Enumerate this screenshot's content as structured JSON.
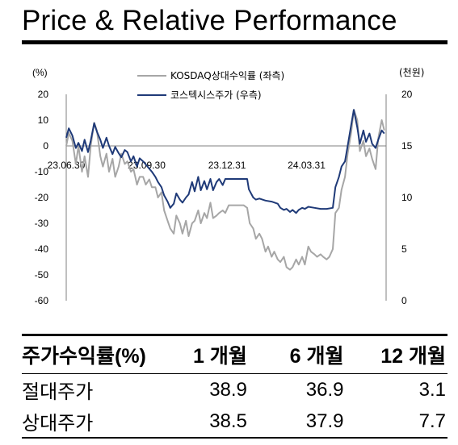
{
  "header": {
    "title": "Price & Relative Performance"
  },
  "chart_data": {
    "type": "line",
    "left_axis_label": "(%)",
    "right_axis_label": "(천원)",
    "left_ylim": [
      -60,
      20
    ],
    "right_ylim": [
      0,
      20
    ],
    "left_ticks": [
      "20",
      "10",
      "0",
      "-10",
      "-20",
      "-30",
      "-40",
      "-50",
      "-60"
    ],
    "right_ticks": [
      "20",
      "15",
      "10",
      "5",
      "0"
    ],
    "x_ticks": [
      "23.06.30",
      "23.09.30",
      "23.12.31",
      "24.03.31"
    ],
    "x_range": [
      "2023-06-30",
      "2024-06-30"
    ],
    "grid": false,
    "legend_position": "top-center",
    "series": [
      {
        "name": "KOSDAQ상대수익률 (좌측)",
        "axis": "left",
        "color": "#a6a6a6",
        "points": [
          [
            "2023-06-30",
            0
          ],
          [
            "2023-07-03",
            5
          ],
          [
            "2023-07-07",
            2
          ],
          [
            "2023-07-11",
            -7
          ],
          [
            "2023-07-14",
            0
          ],
          [
            "2023-07-18",
            -10
          ],
          [
            "2023-07-21",
            -4
          ],
          [
            "2023-07-25",
            -12
          ],
          [
            "2023-07-28",
            0
          ],
          [
            "2023-08-01",
            9
          ],
          [
            "2023-08-04",
            6
          ],
          [
            "2023-08-08",
            -4
          ],
          [
            "2023-08-11",
            -8
          ],
          [
            "2023-08-15",
            -3
          ],
          [
            "2023-08-18",
            -10
          ],
          [
            "2023-08-22",
            -5
          ],
          [
            "2023-08-25",
            -12
          ],
          [
            "2023-08-29",
            -8
          ],
          [
            "2023-09-01",
            -3
          ],
          [
            "2023-09-05",
            -7
          ],
          [
            "2023-09-08",
            -6
          ],
          [
            "2023-09-12",
            -10
          ],
          [
            "2023-09-15",
            -9
          ],
          [
            "2023-09-19",
            -15
          ],
          [
            "2023-09-22",
            -12
          ],
          [
            "2023-09-26",
            -12
          ],
          [
            "2023-09-29",
            -15
          ],
          [
            "2023-10-03",
            -13
          ],
          [
            "2023-10-06",
            -16
          ],
          [
            "2023-10-10",
            -16
          ],
          [
            "2023-10-13",
            -20
          ],
          [
            "2023-10-17",
            -18
          ],
          [
            "2023-10-20",
            -25
          ],
          [
            "2023-10-24",
            -29
          ],
          [
            "2023-10-27",
            -32
          ],
          [
            "2023-10-31",
            -34
          ],
          [
            "2023-11-03",
            -27
          ],
          [
            "2023-11-07",
            -30
          ],
          [
            "2023-11-10",
            -34
          ],
          [
            "2023-11-14",
            -29
          ],
          [
            "2023-11-17",
            -35
          ],
          [
            "2023-11-21",
            -30
          ],
          [
            "2023-11-24",
            -29
          ],
          [
            "2023-11-28",
            -25
          ],
          [
            "2023-12-01",
            -30
          ],
          [
            "2023-12-05",
            -26
          ],
          [
            "2023-12-08",
            -28
          ],
          [
            "2023-12-12",
            -22
          ],
          [
            "2023-12-15",
            -28
          ],
          [
            "2023-12-19",
            -27
          ],
          [
            "2023-12-22",
            -26
          ],
          [
            "2023-12-26",
            -25
          ],
          [
            "2023-12-29",
            -26
          ],
          [
            "2024-01-02",
            -23
          ],
          [
            "2024-01-05",
            -23
          ],
          [
            "2024-01-09",
            -23
          ],
          [
            "2024-01-12",
            -23
          ],
          [
            "2024-01-16",
            -23
          ],
          [
            "2024-01-19",
            -23
          ],
          [
            "2024-01-23",
            -24
          ],
          [
            "2024-01-26",
            -30
          ],
          [
            "2024-01-30",
            -32
          ],
          [
            "2024-02-02",
            -36
          ],
          [
            "2024-02-06",
            -34
          ],
          [
            "2024-02-09",
            -36
          ],
          [
            "2024-02-13",
            -41
          ],
          [
            "2024-02-16",
            -39
          ],
          [
            "2024-02-20",
            -43
          ],
          [
            "2024-02-23",
            -41
          ],
          [
            "2024-02-27",
            -44
          ],
          [
            "2024-03-01",
            -45
          ],
          [
            "2024-03-05",
            -43
          ],
          [
            "2024-03-08",
            -47
          ],
          [
            "2024-03-12",
            -48
          ],
          [
            "2024-03-15",
            -47
          ],
          [
            "2024-03-19",
            -44
          ],
          [
            "2024-03-22",
            -46
          ],
          [
            "2024-03-26",
            -43
          ],
          [
            "2024-03-29",
            -46
          ],
          [
            "2024-04-02",
            -39
          ],
          [
            "2024-04-05",
            -41
          ],
          [
            "2024-04-09",
            -42
          ],
          [
            "2024-04-12",
            -43
          ],
          [
            "2024-04-16",
            -42
          ],
          [
            "2024-04-19",
            -43
          ],
          [
            "2024-04-23",
            -44
          ],
          [
            "2024-04-26",
            -43
          ],
          [
            "2024-04-30",
            -40
          ],
          [
            "2024-05-03",
            -26
          ],
          [
            "2024-05-07",
            -24
          ],
          [
            "2024-05-10",
            -17
          ],
          [
            "2024-05-14",
            -12
          ],
          [
            "2024-05-17",
            -3
          ],
          [
            "2024-05-21",
            5
          ],
          [
            "2024-05-24",
            14
          ],
          [
            "2024-05-28",
            10
          ],
          [
            "2024-05-31",
            -2
          ],
          [
            "2024-06-04",
            2
          ],
          [
            "2024-06-07",
            -4
          ],
          [
            "2024-06-11",
            -1
          ],
          [
            "2024-06-14",
            -5
          ],
          [
            "2024-06-18",
            -9
          ],
          [
            "2024-06-21",
            3
          ],
          [
            "2024-06-25",
            10
          ],
          [
            "2024-06-28",
            6
          ]
        ]
      },
      {
        "name": "코스텍시스주가 (우측)",
        "axis": "right",
        "color": "#1f3a78",
        "points": [
          [
            "2023-06-30",
            15.8
          ],
          [
            "2023-07-03",
            16.7
          ],
          [
            "2023-07-07",
            16.0
          ],
          [
            "2023-07-11",
            14.8
          ],
          [
            "2023-07-14",
            15.3
          ],
          [
            "2023-07-18",
            14.5
          ],
          [
            "2023-07-21",
            15.6
          ],
          [
            "2023-07-25",
            14.4
          ],
          [
            "2023-07-28",
            15.5
          ],
          [
            "2023-08-01",
            17.2
          ],
          [
            "2023-08-04",
            16.4
          ],
          [
            "2023-08-08",
            15.6
          ],
          [
            "2023-08-11",
            14.8
          ],
          [
            "2023-08-15",
            15.8
          ],
          [
            "2023-08-18",
            15.0
          ],
          [
            "2023-08-22",
            14.2
          ],
          [
            "2023-08-25",
            14.9
          ],
          [
            "2023-08-29",
            14.3
          ],
          [
            "2023-09-01",
            13.9
          ],
          [
            "2023-09-05",
            14.6
          ],
          [
            "2023-09-08",
            14.4
          ],
          [
            "2023-09-12",
            13.5
          ],
          [
            "2023-09-15",
            14.0
          ],
          [
            "2023-09-19",
            13.0
          ],
          [
            "2023-09-22",
            13.8
          ],
          [
            "2023-09-26",
            13.5
          ],
          [
            "2023-09-29",
            13.2
          ],
          [
            "2023-10-03",
            12.8
          ],
          [
            "2023-10-06",
            12.5
          ],
          [
            "2023-10-10",
            12.0
          ],
          [
            "2023-10-13",
            11.5
          ],
          [
            "2023-10-17",
            11.0
          ],
          [
            "2023-10-20",
            10.2
          ],
          [
            "2023-10-24",
            9.6
          ],
          [
            "2023-10-27",
            9.0
          ],
          [
            "2023-10-31",
            9.4
          ],
          [
            "2023-11-03",
            10.4
          ],
          [
            "2023-11-07",
            9.8
          ],
          [
            "2023-11-10",
            9.5
          ],
          [
            "2023-11-14",
            10.0
          ],
          [
            "2023-11-17",
            10.3
          ],
          [
            "2023-11-21",
            11.5
          ],
          [
            "2023-11-24",
            10.6
          ],
          [
            "2023-11-28",
            12.0
          ],
          [
            "2023-12-01",
            10.7
          ],
          [
            "2023-12-05",
            11.6
          ],
          [
            "2023-12-08",
            10.8
          ],
          [
            "2023-12-12",
            11.8
          ],
          [
            "2023-12-15",
            10.7
          ],
          [
            "2023-12-19",
            11.5
          ],
          [
            "2023-12-22",
            11.8
          ],
          [
            "2023-12-26",
            11.2
          ],
          [
            "2023-12-29",
            11.8
          ],
          [
            "2024-01-02",
            11.8
          ],
          [
            "2024-01-09",
            11.8
          ],
          [
            "2024-01-16",
            11.8
          ],
          [
            "2024-01-23",
            11.8
          ],
          [
            "2024-01-25",
            10.8
          ],
          [
            "2024-01-30",
            10.0
          ],
          [
            "2024-02-02",
            9.8
          ],
          [
            "2024-02-06",
            9.9
          ],
          [
            "2024-02-13",
            9.7
          ],
          [
            "2024-02-20",
            9.6
          ],
          [
            "2024-02-27",
            9.4
          ],
          [
            "2024-03-01",
            9.0
          ],
          [
            "2024-03-05",
            8.8
          ],
          [
            "2024-03-08",
            8.9
          ],
          [
            "2024-03-12",
            8.6
          ],
          [
            "2024-03-15",
            8.8
          ],
          [
            "2024-03-19",
            8.5
          ],
          [
            "2024-03-22",
            8.8
          ],
          [
            "2024-03-26",
            9.0
          ],
          [
            "2024-03-29",
            8.9
          ],
          [
            "2024-04-02",
            9.1
          ],
          [
            "2024-04-09",
            9.0
          ],
          [
            "2024-04-16",
            8.9
          ],
          [
            "2024-04-23",
            8.9
          ],
          [
            "2024-04-30",
            9.0
          ],
          [
            "2024-05-03",
            11.0
          ],
          [
            "2024-05-07",
            12.0
          ],
          [
            "2024-05-10",
            13.0
          ],
          [
            "2024-05-14",
            13.5
          ],
          [
            "2024-05-17",
            15.0
          ],
          [
            "2024-05-21",
            17.0
          ],
          [
            "2024-05-24",
            18.5
          ],
          [
            "2024-05-28",
            16.8
          ],
          [
            "2024-05-31",
            15.2
          ],
          [
            "2024-06-04",
            16.5
          ],
          [
            "2024-06-07",
            15.4
          ],
          [
            "2024-06-11",
            16.2
          ],
          [
            "2024-06-14",
            15.2
          ],
          [
            "2024-06-18",
            14.8
          ],
          [
            "2024-06-21",
            15.6
          ],
          [
            "2024-06-25",
            16.5
          ],
          [
            "2024-06-28",
            16.2
          ]
        ]
      }
    ]
  },
  "table": {
    "headers": [
      "주가수익률(%)",
      "1 개월",
      "6 개월",
      "12 개월"
    ],
    "rows": [
      {
        "label": "절대주가",
        "values": [
          "38.9",
          "36.9",
          "3.1"
        ]
      },
      {
        "label": "상대주가",
        "values": [
          "38.5",
          "37.9",
          "7.7"
        ]
      }
    ]
  }
}
